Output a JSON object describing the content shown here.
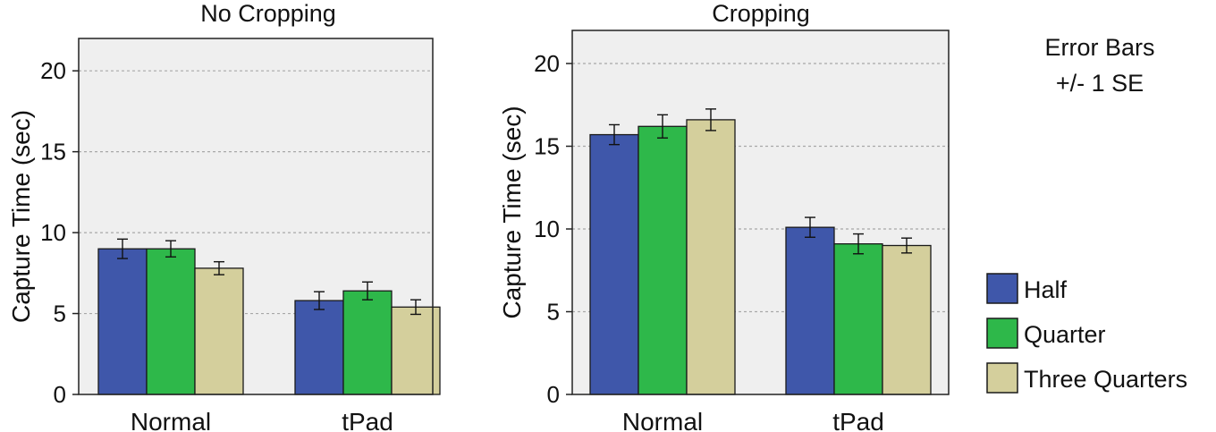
{
  "colors": {
    "plot_background": "#efefef",
    "gridline": "#a8a8a8",
    "series": [
      "#3f57aa",
      "#2eb84a",
      "#d4cf9c"
    ]
  },
  "annotation": [
    "Error Bars",
    "+/- 1 SE"
  ],
  "legend": {
    "placement": "right",
    "items": [
      "Half",
      "Quarter",
      "Three Quarters"
    ]
  },
  "chart_data": [
    {
      "type": "bar",
      "title": "No Cropping",
      "ylabel": "Capture Time (sec)",
      "xlabel": "",
      "categories": [
        "Normal",
        "tPad"
      ],
      "ylim": [
        0,
        22
      ],
      "yticks": [
        0,
        5,
        10,
        15,
        20
      ],
      "grid": true,
      "error_bars": "+/- 1 SE",
      "series": [
        {
          "name": "Half",
          "values": [
            9.0,
            5.8
          ],
          "errors": [
            0.6,
            0.55
          ]
        },
        {
          "name": "Quarter",
          "values": [
            9.0,
            6.4
          ],
          "errors": [
            0.5,
            0.55
          ]
        },
        {
          "name": "Three Quarters",
          "values": [
            7.8,
            5.4
          ],
          "errors": [
            0.4,
            0.45
          ]
        }
      ]
    },
    {
      "type": "bar",
      "title": "Cropping",
      "ylabel": "Capture Time (sec)",
      "xlabel": "",
      "categories": [
        "Normal",
        "tPad"
      ],
      "ylim": [
        0,
        22
      ],
      "yticks": [
        0,
        5,
        10,
        15,
        20
      ],
      "grid": true,
      "error_bars": "+/- 1 SE",
      "series": [
        {
          "name": "Half",
          "values": [
            15.7,
            10.1
          ],
          "errors": [
            0.6,
            0.6
          ]
        },
        {
          "name": "Quarter",
          "values": [
            16.2,
            9.1
          ],
          "errors": [
            0.7,
            0.6
          ]
        },
        {
          "name": "Three Quarters",
          "values": [
            16.6,
            9.0
          ],
          "errors": [
            0.65,
            0.45
          ]
        }
      ]
    }
  ]
}
